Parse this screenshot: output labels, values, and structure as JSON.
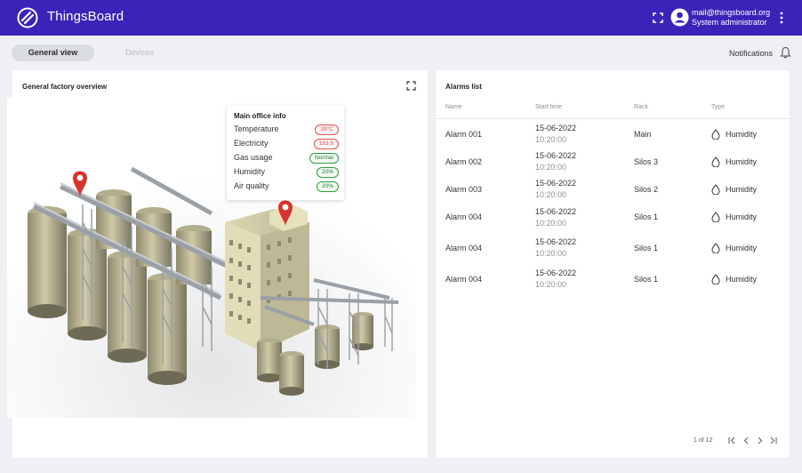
{
  "header": {
    "app_title": "ThingsBoard",
    "user_email": "mail@thingsboard.org",
    "user_role": "System administrator",
    "brand_color": "#3b22b8"
  },
  "tabs": [
    {
      "label": "General view",
      "active": true
    },
    {
      "label": "Devices",
      "active": false
    }
  ],
  "notifications_label": "Notifications",
  "overview": {
    "title": "General factory overview",
    "tooltip": {
      "title": "Main office info",
      "rows": [
        {
          "label": "Temperature",
          "value": "39°C",
          "status": "red"
        },
        {
          "label": "Electricity",
          "value": "183,9",
          "status": "red"
        },
        {
          "label": "Gas usage",
          "value": "Normal",
          "status": "green"
        },
        {
          "label": "Humidity",
          "value": "20%",
          "status": "green"
        },
        {
          "label": "Air quality",
          "value": "20%",
          "status": "green"
        }
      ]
    }
  },
  "alarms": {
    "title": "Alarms list",
    "columns": [
      "Name",
      "Start time",
      "Rack",
      "Type"
    ],
    "rows": [
      {
        "name": "Alarm 001",
        "date": "15-06-2022",
        "time": "10:20:00",
        "rack": "Main",
        "type": "Humidity"
      },
      {
        "name": "Alarm 002",
        "date": "15-06-2022",
        "time": "10:20:00",
        "rack": "Silos 3",
        "type": "Humidity"
      },
      {
        "name": "Alarm 003",
        "date": "15-06-2022",
        "time": "10:20:00",
        "rack": "Silos 2",
        "type": "Humidity"
      },
      {
        "name": "Alarm 004",
        "date": "15-06-2022",
        "time": "10:20:00",
        "rack": "Silos 1",
        "type": "Humidity"
      },
      {
        "name": "Alarm 004",
        "date": "15-06-2022",
        "time": "10:20:00",
        "rack": "Silos 1",
        "type": "Humidity"
      },
      {
        "name": "Alarm 004",
        "date": "15-06-2022",
        "time": "10:20:00",
        "rack": "Silos 1",
        "type": "Humidity"
      }
    ],
    "pagination": "1 of 12"
  }
}
